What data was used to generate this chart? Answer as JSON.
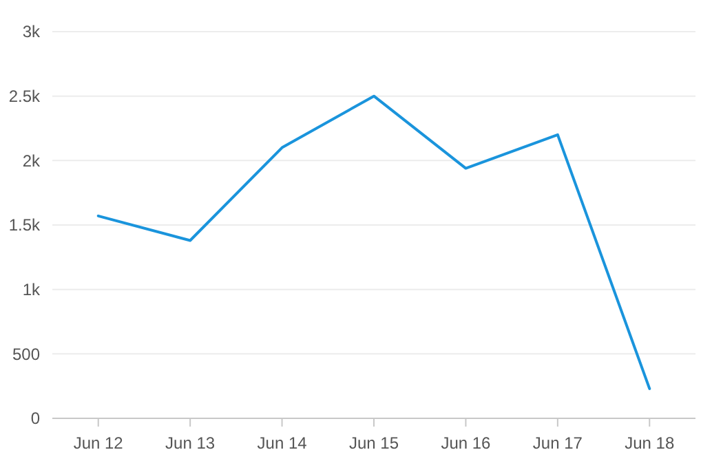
{
  "chart_data": {
    "type": "line",
    "categories": [
      "Jun 12",
      "Jun 13",
      "Jun 14",
      "Jun 15",
      "Jun 16",
      "Jun 17",
      "Jun 18"
    ],
    "series": [
      {
        "color": "#1a94dc",
        "values": [
          1570,
          1380,
          2100,
          2500,
          1940,
          2200,
          230
        ]
      }
    ],
    "ylim": [
      0,
      3000
    ],
    "yticks": [
      0,
      500,
      {
        "value": 1000,
        "label": "1k"
      },
      {
        "value": 1500,
        "label": "1.5k"
      },
      {
        "value": 2000,
        "label": "2k"
      },
      {
        "value": 2500,
        "label": "2.5k"
      },
      {
        "value": 3000,
        "label": "3k"
      }
    ],
    "grid": "y",
    "marker": "none",
    "line_style": "solid"
  }
}
